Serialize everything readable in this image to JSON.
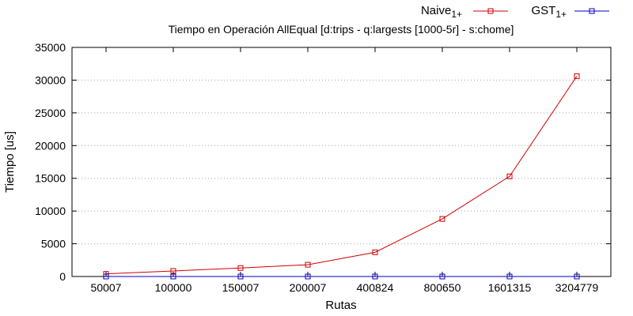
{
  "chart_data": {
    "type": "line",
    "title": "Tiempo en Operación AllEqual [d:trips - q:largests [1000-5r] - s:chome]",
    "xlabel": "Rutas",
    "ylabel": "Tiempo [us]",
    "categories": [
      "50007",
      "100000",
      "150007",
      "200007",
      "400824",
      "800650",
      "1601315",
      "3204779"
    ],
    "ylim": [
      0,
      35000
    ],
    "yticks": [
      0,
      5000,
      10000,
      15000,
      20000,
      25000,
      30000,
      35000
    ],
    "grid": true,
    "legend_position": "top-right",
    "series": [
      {
        "name": "Naive",
        "name_sub": "1+",
        "color": "#d00000",
        "marker": "square",
        "values": [
          400,
          850,
          1300,
          1800,
          3700,
          8800,
          15300,
          30600
        ]
      },
      {
        "name": "GST",
        "name_sub": "1+",
        "color": "#0000c0",
        "marker": "square",
        "values": [
          0,
          0,
          0,
          0,
          0,
          0,
          0,
          0
        ]
      }
    ]
  }
}
